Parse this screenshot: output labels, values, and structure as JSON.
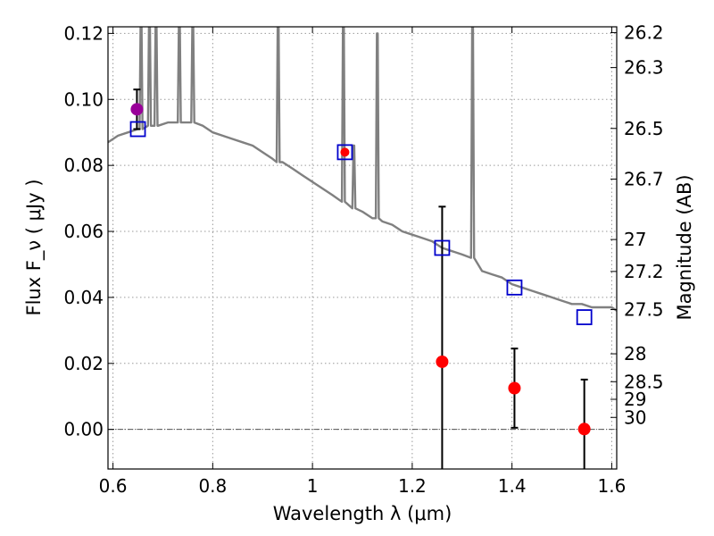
{
  "chart_data": {
    "type": "scatter",
    "xlabel": "Wavelength  λ (μm)",
    "ylabel": "Flux  F_ν  ( μJy )",
    "ylabel_right": "Magnitude (AB)",
    "xlim": [
      0.59,
      1.61
    ],
    "ylim": [
      -0.012,
      0.122
    ],
    "x_ticks": [
      {
        "value": 0.6,
        "label": "0.6"
      },
      {
        "value": 0.8,
        "label": "0.8"
      },
      {
        "value": 1.0,
        "label": "1"
      },
      {
        "value": 1.2,
        "label": "1.2"
      },
      {
        "value": 1.4,
        "label": "1.4"
      },
      {
        "value": 1.6,
        "label": "1.6"
      }
    ],
    "y_ticks": [
      {
        "value": 0.0,
        "label": "0.00"
      },
      {
        "value": 0.02,
        "label": "0.02"
      },
      {
        "value": 0.04,
        "label": "0.04"
      },
      {
        "value": 0.06,
        "label": "0.06"
      },
      {
        "value": 0.08,
        "label": "0.08"
      },
      {
        "value": 0.1,
        "label": "0.10"
      },
      {
        "value": 0.12,
        "label": "0.12"
      }
    ],
    "mag_ticks": [
      {
        "mag": 26.2,
        "label": "26.2"
      },
      {
        "mag": 26.3,
        "label": "26.3"
      },
      {
        "mag": 26.5,
        "label": "26.5"
      },
      {
        "mag": 26.7,
        "label": "26.7"
      },
      {
        "mag": 27.0,
        "label": "27"
      },
      {
        "mag": 27.2,
        "label": "27.2"
      },
      {
        "mag": 27.5,
        "label": "27.5"
      },
      {
        "mag": 28.0,
        "label": "28"
      },
      {
        "mag": 28.5,
        "label": "28.5"
      },
      {
        "mag": 29.0,
        "label": "29"
      },
      {
        "mag": 30.0,
        "label": "30"
      }
    ],
    "grid": true,
    "zero_line": 0.0,
    "colors": {
      "model": "#808080",
      "model_photometry": "#0000cc",
      "detection": "#990099",
      "observed": "#ff0000",
      "errorbar": "#000000"
    },
    "model_spectrum": {
      "continuum": [
        [
          0.59,
          0.087
        ],
        [
          0.61,
          0.089
        ],
        [
          0.63,
          0.09
        ],
        [
          0.65,
          0.091
        ],
        [
          0.67,
          0.092
        ],
        [
          0.69,
          0.092
        ],
        [
          0.71,
          0.093
        ],
        [
          0.73,
          0.093
        ],
        [
          0.76,
          0.093
        ],
        [
          0.78,
          0.092
        ],
        [
          0.8,
          0.09
        ],
        [
          0.82,
          0.089
        ],
        [
          0.84,
          0.088
        ],
        [
          0.86,
          0.087
        ],
        [
          0.88,
          0.086
        ],
        [
          0.9,
          0.084
        ],
        [
          0.92,
          0.082
        ],
        [
          0.94,
          0.081
        ],
        [
          0.96,
          0.079
        ],
        [
          0.98,
          0.077
        ],
        [
          1.0,
          0.075
        ],
        [
          1.02,
          0.073
        ],
        [
          1.04,
          0.071
        ],
        [
          1.06,
          0.069
        ],
        [
          1.08,
          0.067
        ],
        [
          1.1,
          0.066
        ],
        [
          1.12,
          0.064
        ],
        [
          1.14,
          0.063
        ],
        [
          1.16,
          0.062
        ],
        [
          1.18,
          0.06
        ],
        [
          1.2,
          0.059
        ],
        [
          1.22,
          0.058
        ],
        [
          1.24,
          0.057
        ],
        [
          1.26,
          0.055
        ],
        [
          1.28,
          0.054
        ],
        [
          1.3,
          0.053
        ],
        [
          1.32,
          0.052
        ],
        [
          1.34,
          0.048
        ],
        [
          1.36,
          0.047
        ],
        [
          1.38,
          0.046
        ],
        [
          1.4,
          0.044
        ],
        [
          1.42,
          0.043
        ],
        [
          1.44,
          0.042
        ],
        [
          1.46,
          0.041
        ],
        [
          1.48,
          0.04
        ],
        [
          1.5,
          0.039
        ],
        [
          1.52,
          0.038
        ],
        [
          1.54,
          0.038
        ],
        [
          1.56,
          0.037
        ],
        [
          1.58,
          0.037
        ],
        [
          1.6,
          0.037
        ],
        [
          1.61,
          0.036
        ]
      ],
      "emission_lines": [
        {
          "x": 0.6563,
          "base": 0.091,
          "peak": 0.125
        },
        {
          "x": 0.6731,
          "base": 0.092,
          "peak": 0.125
        },
        {
          "x": 0.6863,
          "base": 0.092,
          "peak": 0.125
        },
        {
          "x": 0.733,
          "base": 0.093,
          "peak": 0.125
        },
        {
          "x": 0.76,
          "base": 0.093,
          "peak": 0.125
        },
        {
          "x": 0.9312,
          "base": 0.081,
          "peak": 0.125
        },
        {
          "x": 1.062,
          "base": 0.069,
          "peak": 0.125
        },
        {
          "x": 1.083,
          "base": 0.067,
          "peak": 0.086
        },
        {
          "x": 1.13,
          "base": 0.064,
          "peak": 0.12
        },
        {
          "x": 1.321,
          "base": 0.052,
          "peak": 0.125
        }
      ]
    },
    "series": [
      {
        "role": "model_photometry",
        "marker": "open-square",
        "points": [
          {
            "x": 0.65,
            "y": 0.091
          },
          {
            "x": 1.065,
            "y": 0.084
          },
          {
            "x": 1.26,
            "y": 0.055
          },
          {
            "x": 1.405,
            "y": 0.043
          },
          {
            "x": 1.545,
            "y": 0.034
          }
        ]
      },
      {
        "role": "detection",
        "marker": "filled-circle",
        "points": [
          {
            "x": 0.648,
            "y": 0.097,
            "err": 0.006
          }
        ]
      },
      {
        "role": "observed",
        "marker": "filled-circle",
        "points": [
          {
            "x": 1.065,
            "y": 0.084,
            "err": 0.0
          },
          {
            "x": 1.26,
            "y": 0.0205,
            "err": 0.047
          },
          {
            "x": 1.405,
            "y": 0.0125,
            "err": 0.012
          },
          {
            "x": 1.545,
            "y": 0.0001,
            "err": 0.015
          }
        ]
      }
    ]
  }
}
